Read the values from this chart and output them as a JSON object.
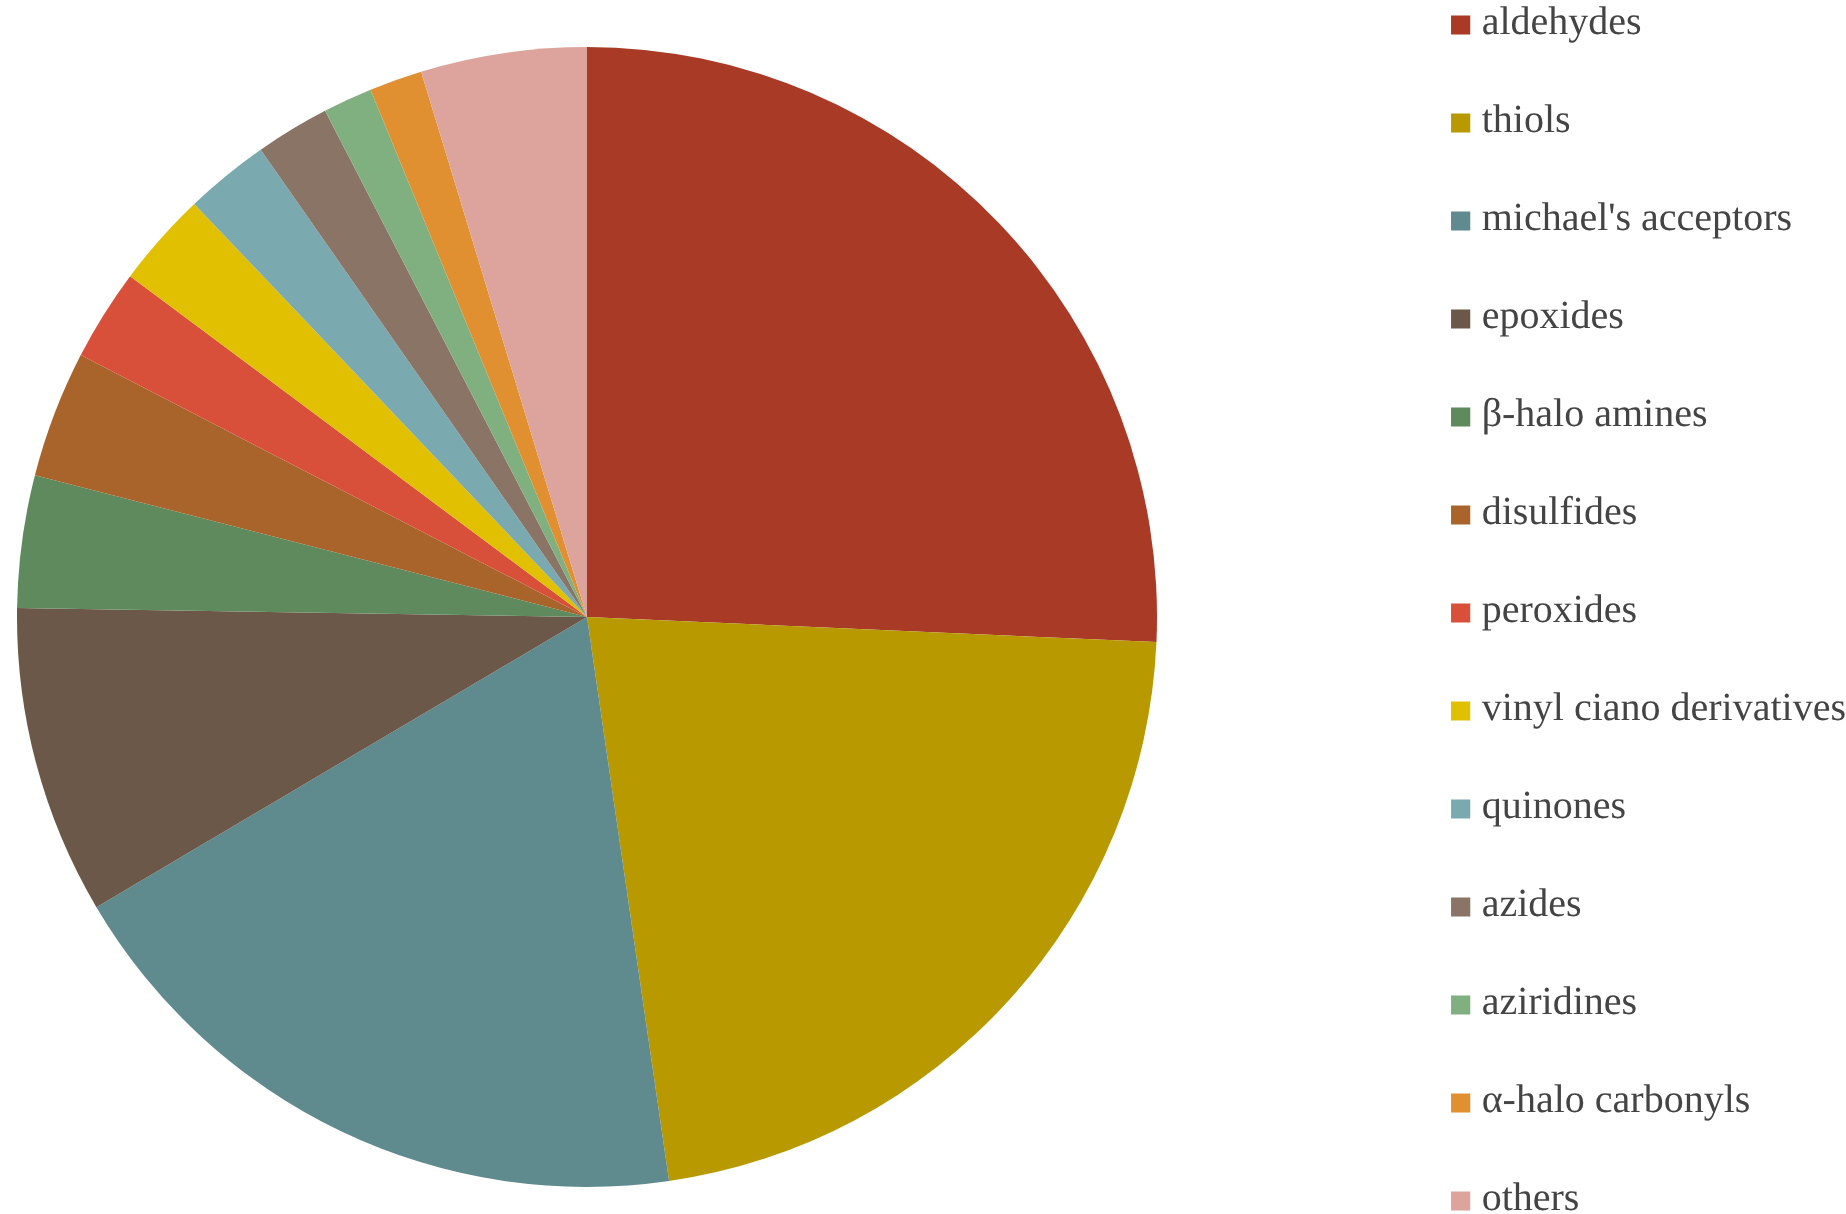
{
  "chart_data": {
    "type": "pie",
    "legend": "right",
    "categories": [
      "aldehydes",
      "thiols",
      "michael's acceptors",
      "epoxides",
      "β-halo amines",
      "disulfides",
      "peroxides",
      "vinyl ciano derivatives",
      "quinones",
      "azides",
      "aziridines",
      "α-halo carbonyls",
      "others"
    ],
    "values": [
      25.7,
      22,
      18.8,
      8.75,
      3.75,
      3.6,
      2.6,
      2.7,
      2.4,
      2.1,
      1.4,
      1.5,
      4.7
    ],
    "colors": [
      "#a83a26",
      "#b89a00",
      "#5f8a8e",
      "#6b5848",
      "#5e8a5e",
      "#a8642a",
      "#d8503a",
      "#e0c000",
      "#7aaab0",
      "#8a7466",
      "#80b080",
      "#e09030",
      "#dca49c"
    ]
  }
}
